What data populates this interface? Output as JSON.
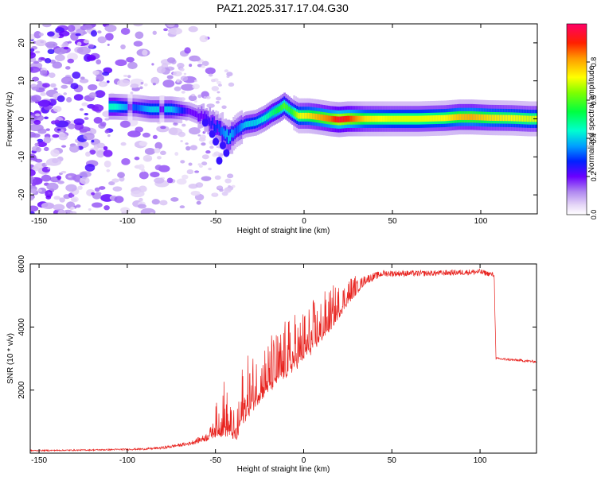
{
  "title": "PAZ1.2025.317.17.04.G30",
  "chart_data": [
    {
      "type": "heatmap",
      "title": "PAZ1.2025.317.17.04.G30",
      "xlabel": "Height of straight line (km)",
      "ylabel": "Frequency (Hz)",
      "xlim": [
        -155,
        132
      ],
      "ylim": [
        -25,
        25
      ],
      "xticks": [
        -150,
        -100,
        -50,
        0,
        50,
        100
      ],
      "yticks": [
        -20,
        -10,
        0,
        10,
        20
      ],
      "colorbar": {
        "label": "Normalized spectral amplitude",
        "range": [
          0,
          1
        ],
        "ticks": [
          0.0,
          0.2,
          0.4,
          0.6,
          0.8
        ],
        "tick_labels": [
          "0.0",
          "0.2",
          "0.4",
          "0.6",
          "0.8"
        ]
      },
      "ridge": [
        {
          "x": -107,
          "y": 3.2,
          "amp": 0.45
        },
        {
          "x": -95,
          "y": 3.0,
          "amp": 0.3
        },
        {
          "x": -87,
          "y": 2.5,
          "amp": 0.4
        },
        {
          "x": -75,
          "y": 2.5,
          "amp": 0.4
        },
        {
          "x": -65,
          "y": 2.0,
          "amp": 0.2
        },
        {
          "x": -57,
          "y": 0.5,
          "amp": 0.2
        },
        {
          "x": -52,
          "y": -1.0,
          "amp": 0.25
        },
        {
          "x": -48,
          "y": -2.5,
          "amp": 0.3
        },
        {
          "x": -45,
          "y": -4.0,
          "amp": 0.35
        },
        {
          "x": -42,
          "y": -5.0,
          "amp": 0.4
        },
        {
          "x": -38,
          "y": -3.0,
          "amp": 0.3
        },
        {
          "x": -33,
          "y": -1.5,
          "amp": 0.4
        },
        {
          "x": -27,
          "y": -1.0,
          "amp": 0.4
        },
        {
          "x": -22,
          "y": 0.2,
          "amp": 0.45
        },
        {
          "x": -18,
          "y": 1.5,
          "amp": 0.5
        },
        {
          "x": -14,
          "y": 2.5,
          "amp": 0.55
        },
        {
          "x": -11,
          "y": 3.5,
          "amp": 0.6
        },
        {
          "x": -7,
          "y": 2.0,
          "amp": 0.55
        },
        {
          "x": -3,
          "y": 0.8,
          "amp": 0.7
        },
        {
          "x": 3,
          "y": 0.8,
          "amp": 0.75
        },
        {
          "x": 8,
          "y": 0.5,
          "amp": 0.8
        },
        {
          "x": 15,
          "y": 0.0,
          "amp": 0.85
        },
        {
          "x": 20,
          "y": -0.2,
          "amp": 0.95
        },
        {
          "x": 25,
          "y": 0.0,
          "amp": 0.9
        },
        {
          "x": 35,
          "y": 0.0,
          "amp": 0.75
        },
        {
          "x": 50,
          "y": 0.0,
          "amp": 0.7
        },
        {
          "x": 65,
          "y": 0.0,
          "amp": 0.7
        },
        {
          "x": 80,
          "y": 0.2,
          "amp": 0.72
        },
        {
          "x": 88,
          "y": 0.5,
          "amp": 0.78
        },
        {
          "x": 95,
          "y": 0.5,
          "amp": 0.8
        },
        {
          "x": 105,
          "y": 0.3,
          "amp": 0.75
        },
        {
          "x": 118,
          "y": 0.2,
          "amp": 0.72
        },
        {
          "x": 128,
          "y": 0.0,
          "amp": 0.7
        }
      ]
    },
    {
      "type": "line",
      "xlabel": "Height of straight line (km)",
      "ylabel": "SNR (10 * v/v)",
      "xlim": [
        -155,
        132
      ],
      "ylim": [
        0,
        6000
      ],
      "xticks": [
        -150,
        -100,
        -50,
        0,
        50,
        100
      ],
      "yticks": [
        2000,
        4000,
        6000
      ],
      "line_color": "#e8231f",
      "envelope": [
        {
          "x": -155,
          "y": 80,
          "noise": 40
        },
        {
          "x": -120,
          "y": 100,
          "noise": 40
        },
        {
          "x": -90,
          "y": 130,
          "noise": 60
        },
        {
          "x": -80,
          "y": 170,
          "noise": 80
        },
        {
          "x": -65,
          "y": 300,
          "noise": 120
        },
        {
          "x": -55,
          "y": 500,
          "noise": 250
        },
        {
          "x": -50,
          "y": 800,
          "noise": 600
        },
        {
          "x": -46,
          "y": 1200,
          "noise": 1400
        },
        {
          "x": -42,
          "y": 900,
          "noise": 800
        },
        {
          "x": -38,
          "y": 600,
          "noise": 500
        },
        {
          "x": -35,
          "y": 1500,
          "noise": 1300
        },
        {
          "x": -25,
          "y": 2200,
          "noise": 1200
        },
        {
          "x": -15,
          "y": 2700,
          "noise": 1200
        },
        {
          "x": -5,
          "y": 3200,
          "noise": 1200
        },
        {
          "x": 5,
          "y": 3700,
          "noise": 1100
        },
        {
          "x": 15,
          "y": 4300,
          "noise": 900
        },
        {
          "x": 25,
          "y": 5000,
          "noise": 600
        },
        {
          "x": 35,
          "y": 5500,
          "noise": 300
        },
        {
          "x": 45,
          "y": 5700,
          "noise": 200
        },
        {
          "x": 70,
          "y": 5700,
          "noise": 180
        },
        {
          "x": 100,
          "y": 5750,
          "noise": 180
        },
        {
          "x": 108,
          "y": 5650,
          "noise": 150
        },
        {
          "x": 109,
          "y": 3000,
          "noise": 80
        },
        {
          "x": 120,
          "y": 2950,
          "noise": 80
        },
        {
          "x": 132,
          "y": 2900,
          "noise": 80
        }
      ]
    }
  ]
}
